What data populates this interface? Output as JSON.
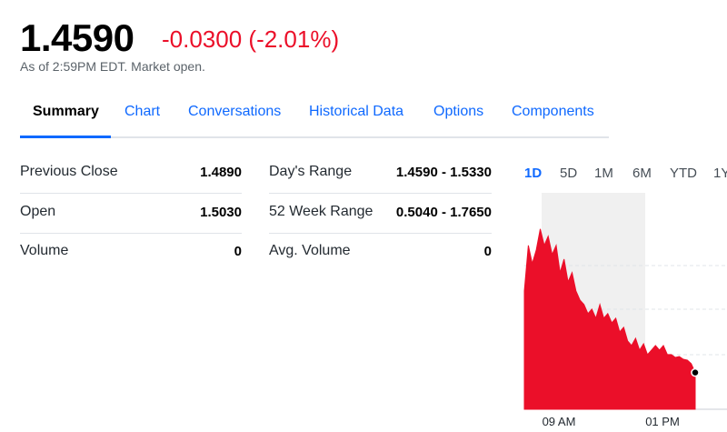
{
  "header": {
    "price": "1.4590",
    "change": "-0.0300 (-2.01%)",
    "as_of": "As of 2:59PM EDT. Market open."
  },
  "tabs": [
    "Summary",
    "Chart",
    "Conversations",
    "Historical Data",
    "Options",
    "Components"
  ],
  "stats": {
    "left": [
      [
        "Previous Close",
        "1.4890"
      ],
      [
        "Open",
        "1.5030"
      ],
      [
        "Volume",
        "0"
      ]
    ],
    "right": [
      [
        "Day's Range",
        "1.4590 - 1.5330"
      ],
      [
        "52 Week Range",
        "0.5040 - 1.7650"
      ],
      [
        "Avg. Volume",
        "0"
      ]
    ]
  },
  "ranges": [
    "1D",
    "5D",
    "1M",
    "6M",
    "YTD",
    "1Y"
  ],
  "chart": {
    "type": "area",
    "color": "#eb0f29",
    "x_labels": [
      "09 AM",
      "01 PM"
    ],
    "ylim": [
      1.44,
      1.552
    ],
    "values": [
      1.5012,
      1.5248,
      1.5154,
      1.5224,
      1.5333,
      1.5248,
      1.5295,
      1.5201,
      1.5248,
      1.5107,
      1.5177,
      1.5059,
      1.5107,
      1.5012,
      1.4965,
      1.4942,
      1.4895,
      1.4918,
      1.4871,
      1.4942,
      1.4871,
      1.4895,
      1.4847,
      1.4871,
      1.48,
      1.4824,
      1.4753,
      1.473,
      1.4767,
      1.4706,
      1.4739,
      1.4683,
      1.4706,
      1.473,
      1.4706,
      1.473,
      1.4683,
      1.4683,
      1.4668,
      1.4673,
      1.4659,
      1.4654,
      1.4636,
      1.459
    ]
  }
}
